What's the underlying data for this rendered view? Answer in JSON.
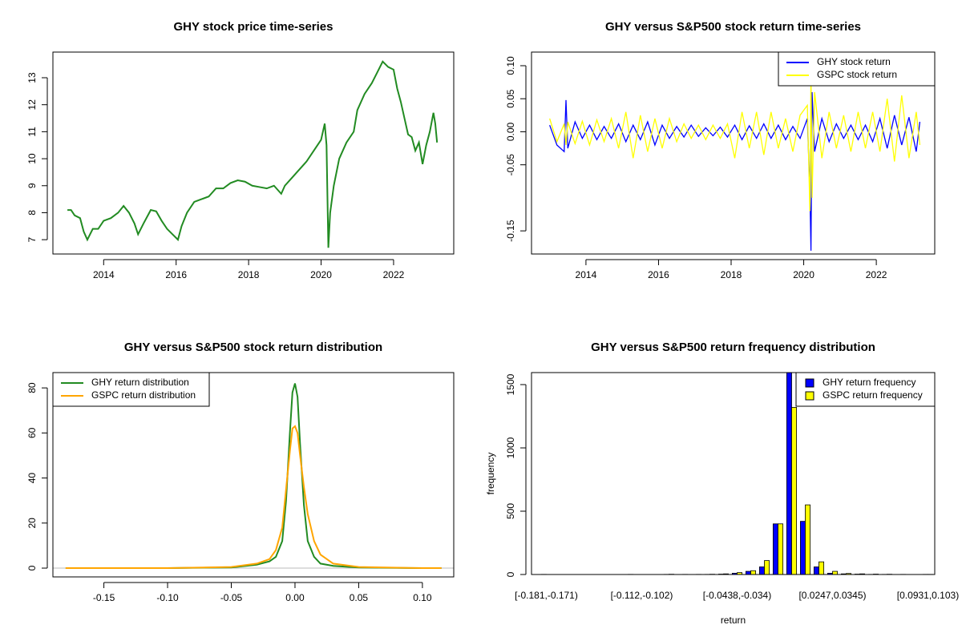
{
  "chart_data": [
    {
      "type": "line",
      "title": "GHY stock price time-series",
      "x": [
        2013.0,
        2013.1,
        2013.2,
        2013.35,
        2013.45,
        2013.55,
        2013.7,
        2013.85,
        2014.0,
        2014.2,
        2014.4,
        2014.55,
        2014.7,
        2014.85,
        2014.95,
        2015.1,
        2015.3,
        2015.45,
        2015.6,
        2015.75,
        2015.9,
        2016.05,
        2016.15,
        2016.3,
        2016.5,
        2016.7,
        2016.9,
        2017.1,
        2017.3,
        2017.5,
        2017.7,
        2017.9,
        2018.1,
        2018.3,
        2018.5,
        2018.7,
        2018.9,
        2019.0,
        2019.2,
        2019.4,
        2019.6,
        2019.8,
        2020.0,
        2020.1,
        2020.15,
        2020.2,
        2020.25,
        2020.35,
        2020.5,
        2020.7,
        2020.9,
        2021.0,
        2021.2,
        2021.4,
        2021.55,
        2021.7,
        2021.85,
        2022.0,
        2022.1,
        2022.2,
        2022.3,
        2022.4,
        2022.5,
        2022.6,
        2022.7,
        2022.8,
        2022.9,
        2023.0,
        2023.1,
        2023.15,
        2023.2
      ],
      "series": [
        {
          "color": "#228b22",
          "values": [
            8.1,
            8.1,
            7.9,
            7.8,
            7.3,
            7.0,
            7.4,
            7.4,
            7.7,
            7.8,
            8.0,
            8.25,
            8.0,
            7.6,
            7.2,
            7.6,
            8.1,
            8.05,
            7.7,
            7.4,
            7.2,
            7.0,
            7.5,
            8.0,
            8.4,
            8.5,
            8.6,
            8.9,
            8.9,
            9.1,
            9.2,
            9.15,
            9.0,
            8.95,
            8.9,
            9.0,
            8.7,
            9.0,
            9.3,
            9.6,
            9.9,
            10.3,
            10.7,
            11.3,
            10.5,
            6.7,
            8.0,
            9.0,
            10.0,
            10.6,
            11.0,
            11.8,
            12.4,
            12.8,
            13.2,
            13.6,
            13.4,
            13.3,
            12.6,
            12.1,
            11.5,
            10.9,
            10.8,
            10.3,
            10.6,
            9.8,
            10.5,
            11.0,
            11.7,
            11.3,
            10.6
          ]
        }
      ],
      "xlim": [
        2012.6,
        2023.66
      ],
      "ylim": [
        6.47,
        13.95
      ],
      "xticks": [
        2014,
        2016,
        2018,
        2020,
        2022
      ],
      "yticks": [
        7,
        8,
        9,
        10,
        11,
        12,
        13
      ]
    },
    {
      "type": "line",
      "title": "GHY versus S&P500 stock return time-series",
      "x": [
        2013.0,
        2013.2,
        2013.4,
        2013.45,
        2013.5,
        2013.7,
        2013.9,
        2014.1,
        2014.3,
        2014.5,
        2014.7,
        2014.9,
        2015.1,
        2015.3,
        2015.5,
        2015.7,
        2015.9,
        2016.1,
        2016.3,
        2016.5,
        2016.7,
        2016.9,
        2017.1,
        2017.3,
        2017.5,
        2017.7,
        2017.9,
        2018.1,
        2018.3,
        2018.5,
        2018.7,
        2018.9,
        2019.1,
        2019.3,
        2019.5,
        2019.7,
        2019.9,
        2020.1,
        2020.17,
        2020.2,
        2020.23,
        2020.3,
        2020.5,
        2020.7,
        2020.9,
        2021.1,
        2021.3,
        2021.5,
        2021.7,
        2021.9,
        2022.1,
        2022.3,
        2022.5,
        2022.7,
        2022.9,
        2023.1,
        2023.2
      ],
      "series": [
        {
          "name": "GHY stock return",
          "color": "#0000ff",
          "values": [
            0.01,
            -0.02,
            -0.03,
            0.048,
            -0.025,
            0.015,
            -0.01,
            0.01,
            -0.012,
            0.008,
            -0.01,
            0.012,
            -0.015,
            0.01,
            -0.012,
            0.015,
            -0.02,
            0.01,
            -0.01,
            0.008,
            -0.008,
            0.01,
            -0.007,
            0.006,
            -0.006,
            0.007,
            -0.008,
            0.01,
            -0.012,
            0.009,
            -0.01,
            0.012,
            -0.01,
            0.01,
            -0.012,
            0.008,
            -0.01,
            0.02,
            -0.09,
            -0.18,
            0.06,
            -0.03,
            0.02,
            -0.015,
            0.012,
            -0.01,
            0.01,
            -0.012,
            0.01,
            -0.015,
            0.02,
            -0.025,
            0.025,
            -0.02,
            0.022,
            -0.03,
            0.015
          ]
        },
        {
          "name": "GSPC stock return",
          "color": "#ffff00",
          "values": [
            0.02,
            -0.015,
            0.012,
            -0.02,
            0.015,
            -0.018,
            0.016,
            -0.02,
            0.018,
            -0.015,
            0.02,
            -0.025,
            0.03,
            -0.04,
            0.025,
            -0.03,
            0.02,
            -0.025,
            0.02,
            -0.015,
            0.012,
            -0.01,
            0.01,
            -0.012,
            0.01,
            -0.01,
            0.012,
            -0.04,
            0.03,
            -0.025,
            0.03,
            -0.035,
            0.03,
            -0.025,
            0.02,
            -0.03,
            0.025,
            0.04,
            -0.12,
            0.09,
            -0.1,
            0.06,
            -0.04,
            0.03,
            -0.025,
            0.025,
            -0.03,
            0.03,
            -0.025,
            0.03,
            -0.03,
            0.05,
            -0.045,
            0.055,
            -0.04,
            0.03,
            -0.02
          ]
        }
      ],
      "xlim": [
        2012.5,
        2023.61
      ],
      "ylim": [
        -0.185,
        0.1206
      ],
      "xticks": [
        2014,
        2016,
        2018,
        2020,
        2022
      ],
      "yticks": [
        -0.15,
        -0.05,
        {
          "value": 0,
          "label": "0.00"
        },
        0.05,
        {
          "value": 0.1,
          "label": "0.10"
        }
      ],
      "legend": "topright"
    },
    {
      "type": "line",
      "title": "GHY versus S&P500 stock return distribution",
      "x": [
        -0.18,
        -0.1,
        -0.05,
        -0.03,
        -0.02,
        -0.015,
        -0.01,
        -0.007,
        -0.004,
        -0.002,
        0,
        0.002,
        0.004,
        0.007,
        0.01,
        0.015,
        0.02,
        0.03,
        0.05,
        0.1,
        0.115
      ],
      "series": [
        {
          "name": "GHY return distribution",
          "color": "#228b22",
          "values": [
            0,
            0,
            0.3,
            1.5,
            3,
            5,
            12,
            30,
            60,
            78,
            82,
            76,
            55,
            28,
            12,
            5,
            2,
            1,
            0.3,
            0,
            0
          ]
        },
        {
          "name": "GSPC return distribution",
          "color": "#ffa500",
          "values": [
            0,
            0,
            0.5,
            2,
            4,
            8,
            18,
            35,
            52,
            62,
            63,
            60,
            50,
            36,
            24,
            12,
            6,
            2,
            0.5,
            0,
            0
          ]
        }
      ],
      "xlim": [
        -0.19,
        0.1246
      ],
      "ylim": [
        -3.9,
        86.8
      ],
      "xticks": [
        -0.15,
        {
          "value": -0.1,
          "label": "-0.10"
        },
        -0.05,
        {
          "value": 0,
          "label": "0.00"
        },
        0.05,
        {
          "value": 0.1,
          "label": "0.10"
        }
      ],
      "yticks": [
        0,
        20,
        40,
        60,
        80
      ],
      "legend": "topleft"
    },
    {
      "type": "bar",
      "title": "GHY versus S&P500 return frequency distribution",
      "x_label": "return",
      "y_label": "frequency",
      "categories": [
        "[-0.181,-0.171)",
        null,
        null,
        null,
        null,
        null,
        null,
        "[-0.112,-0.102)",
        null,
        null,
        null,
        null,
        null,
        null,
        "[-0.0438,-0.034)",
        null,
        null,
        null,
        null,
        null,
        null,
        "[0.0247,0.0345)",
        null,
        null,
        null,
        null,
        null,
        null,
        "[0.0931,0.103)"
      ],
      "series": [
        {
          "name": "GHY return frequency",
          "color": "#0000ff",
          "values": [
            1,
            0,
            0,
            0,
            0,
            0,
            0,
            0,
            0,
            1,
            0,
            0,
            1,
            3,
            10,
            25,
            60,
            400,
            1600,
            420,
            60,
            10,
            5,
            3,
            1,
            1,
            0,
            0,
            1
          ]
        },
        {
          "name": "GSPC return frequency",
          "color": "#ffff00",
          "values": [
            0,
            0,
            0,
            0,
            0,
            0,
            1,
            0,
            0,
            2,
            1,
            1,
            2,
            5,
            15,
            30,
            110,
            400,
            1320,
            550,
            100,
            25,
            8,
            5,
            3,
            2,
            1,
            0,
            1
          ]
        }
      ],
      "ylim": [
        0,
        1595
      ],
      "yticks": [
        0,
        500,
        1000,
        1500
      ],
      "legend": "topright"
    }
  ]
}
